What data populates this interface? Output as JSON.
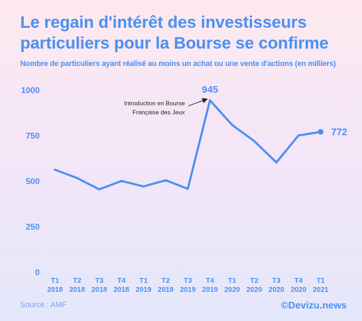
{
  "title": "Le regain d'intérêt des investisseurs particuliers pour la Bourse se confirme",
  "subtitle": "Nombre de particuliers ayant réalisé au moins un achat ou une vente d'actions (en milliers)",
  "footer": {
    "source": "Source : AMF",
    "brand": "©Devizu.news"
  },
  "chart_data": {
    "type": "line",
    "categories": [
      [
        "T1",
        "2018"
      ],
      [
        "T2",
        "2018"
      ],
      [
        "T3",
        "2018"
      ],
      [
        "T4",
        "2018"
      ],
      [
        "T1",
        "2019"
      ],
      [
        "T2",
        "2019"
      ],
      [
        "T3",
        "2019"
      ],
      [
        "T4",
        "2019"
      ],
      [
        "T1",
        "2020"
      ],
      [
        "T2",
        "2020"
      ],
      [
        "T3",
        "2020"
      ],
      [
        "T4",
        "2020"
      ],
      [
        "T1",
        "2021"
      ]
    ],
    "values": [
      564,
      518,
      456,
      502,
      472,
      506,
      459,
      945,
      810,
      721,
      604,
      752,
      772
    ],
    "ylim": [
      0,
      1000
    ],
    "yticks": [
      0,
      250,
      500,
      750,
      1000
    ],
    "labels": [
      {
        "index": 7,
        "text": "945"
      },
      {
        "index": 12,
        "text": "772"
      }
    ],
    "annotation": {
      "index": 7,
      "lines": [
        "Introduction en Bourse",
        "Française des Jeux"
      ]
    },
    "line_color": "#4a90f2",
    "title": "",
    "xlabel": "",
    "ylabel": "",
    "grid": false,
    "legend": "none"
  }
}
